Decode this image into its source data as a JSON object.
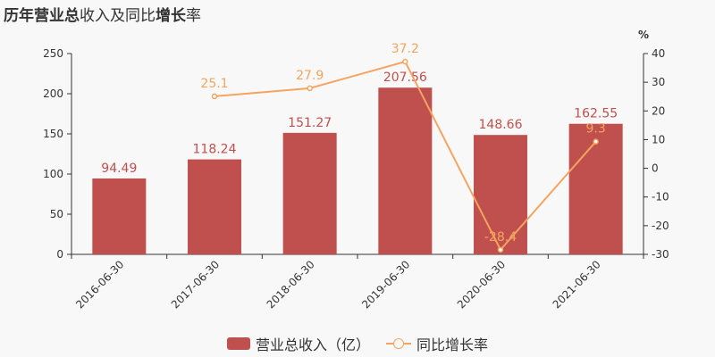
{
  "title": {
    "part1": "历年",
    "part2": "营业总",
    "part3": "收入及同比",
    "part4": "增长",
    "part5": "率"
  },
  "chart_data": {
    "type": "bar",
    "categories": [
      "2016-06-30",
      "2017-06-30",
      "2018-06-30",
      "2019-06-30",
      "2020-06-30",
      "2021-06-30"
    ],
    "series": [
      {
        "name": "营业总收入（亿）",
        "type": "bar",
        "axis": "left",
        "values": [
          94.49,
          118.24,
          151.27,
          207.56,
          148.66,
          162.55
        ],
        "labels": [
          "94.49",
          "118.24",
          "151.27",
          "207.56",
          "148.66",
          "162.55"
        ]
      },
      {
        "name": "同比增长率",
        "type": "line",
        "axis": "right",
        "values": [
          null,
          25.1,
          27.9,
          37.2,
          -28.4,
          9.3
        ],
        "labels": [
          "",
          "25.1",
          "27.9",
          "37.2",
          "-28.4",
          "9.3"
        ]
      }
    ],
    "ylim_left": [
      0,
      250
    ],
    "yticks_left": [
      0,
      50,
      100,
      150,
      200,
      250
    ],
    "ylim_right": [
      -30,
      40
    ],
    "yticks_right": [
      -30,
      -20,
      -10,
      0,
      10,
      20,
      30,
      40
    ],
    "right_axis_unit": "%",
    "colors": {
      "bar": "#c0504d",
      "bar_label": "#c0504d",
      "line": "#f4a460",
      "line_label": "#f4a460"
    }
  },
  "legend": {
    "bar": "营业总收入（亿）",
    "line": "同比增长率"
  }
}
